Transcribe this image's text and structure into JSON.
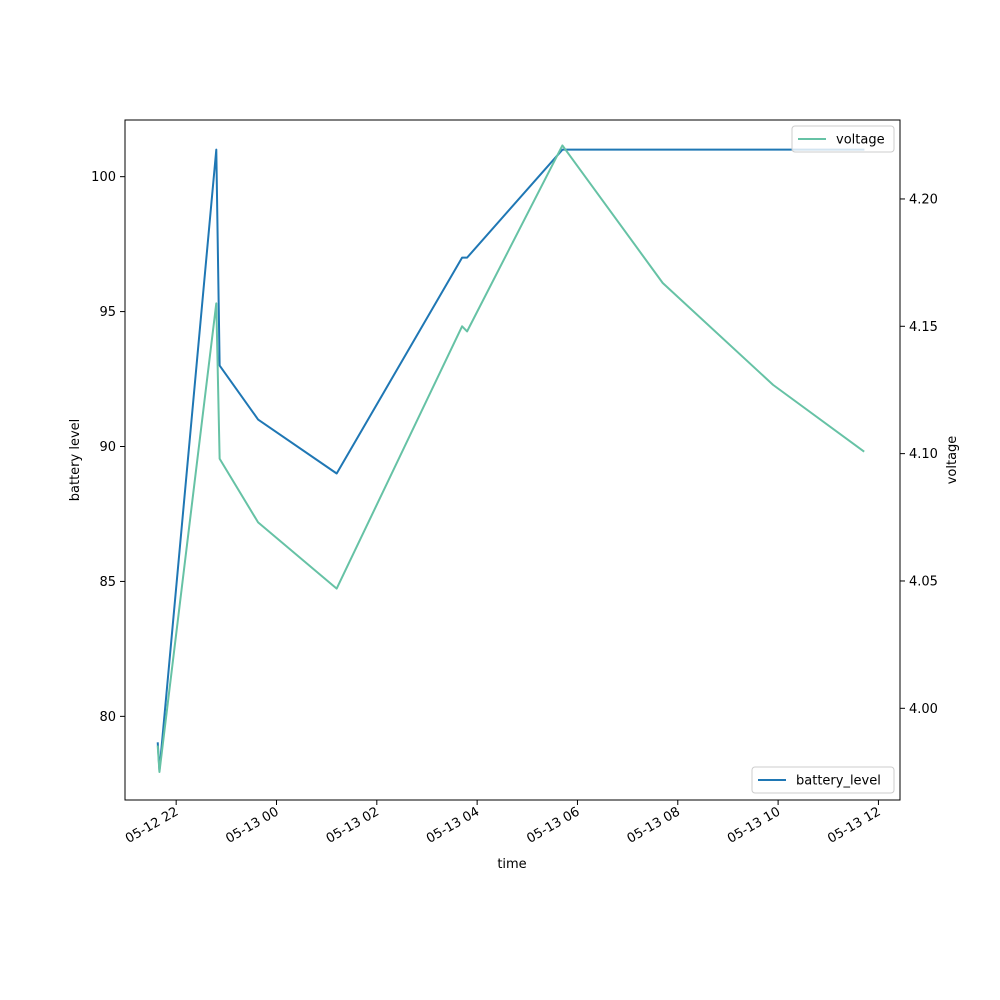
{
  "chart_data": {
    "type": "line",
    "xlabel": "time",
    "ylabel_left": "battery level",
    "ylabel_right": "voltage",
    "x_ticks": [
      "05-12 22",
      "05-13 00",
      "05-13 02",
      "05-13 04",
      "05-13 06",
      "05-13 08",
      "05-13 10",
      "05-13 12"
    ],
    "xlim_hours": [
      20.98,
      36.43
    ],
    "x_tick_hours": [
      22,
      24,
      26,
      28,
      30,
      32,
      34,
      36
    ],
    "ylim_left": [
      76.9,
      102.1
    ],
    "yticks_left": [
      80,
      85,
      90,
      95,
      100
    ],
    "ylim_right": [
      3.964,
      4.231
    ],
    "yticks_right": [
      "4.00",
      "4.05",
      "4.10",
      "4.15",
      "4.20"
    ],
    "grid": false,
    "series": [
      {
        "name": "battery_level",
        "axis": "left",
        "color": "#1f77b4",
        "legend_position": "lower-right",
        "x": [
          "05-12 21:38",
          "05-12 21:40",
          "05-12 22:48",
          "05-12 22:52",
          "05-12 23:38",
          "05-13 01:12",
          "05-13 03:42",
          "05-13 03:48",
          "05-13 05:42",
          "05-13 11:42"
        ],
        "values": [
          79,
          78,
          101,
          93,
          91,
          89,
          97,
          97,
          101,
          101
        ]
      },
      {
        "name": "voltage",
        "axis": "right",
        "color": "#66c2a5",
        "legend_position": "upper-right",
        "x": [
          "05-12 21:38",
          "05-12 21:40",
          "05-12 22:48",
          "05-12 22:52",
          "05-12 23:38",
          "05-13 01:12",
          "05-13 03:42",
          "05-13 03:48",
          "05-13 05:42",
          "05-13 07:42",
          "05-13 09:54",
          "05-13 11:42"
        ],
        "values": [
          3.985,
          3.975,
          4.159,
          4.098,
          4.073,
          4.047,
          4.15,
          4.148,
          4.221,
          4.167,
          4.127,
          4.101
        ]
      }
    ]
  }
}
